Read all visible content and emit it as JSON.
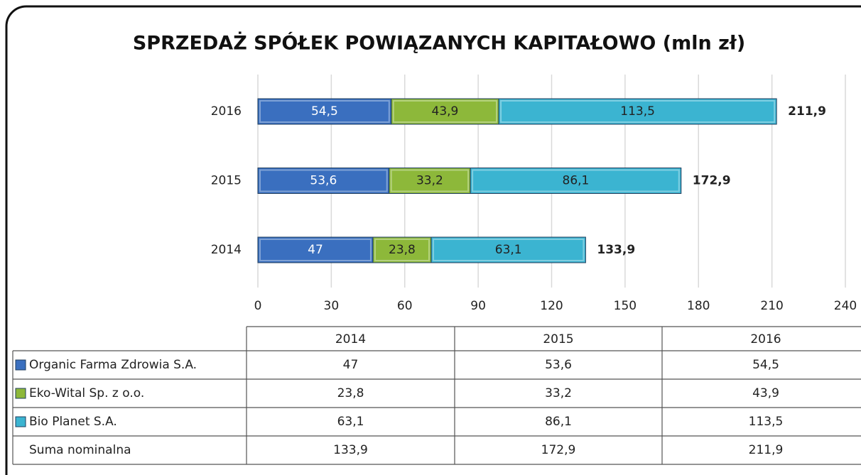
{
  "chart_data": {
    "type": "stacked-bar-horizontal",
    "title": "SPRZEDAŻ SPÓŁEK POWIĄZANYCH KAPITAŁOWO (mln zł)",
    "categories": [
      "2014",
      "2015",
      "2016"
    ],
    "series": [
      {
        "name": "Organic Farma Zdrowia S.A.",
        "color": "#3a6fbf",
        "values": [
          47,
          53.6,
          54.5
        ],
        "value_labels": [
          "47",
          "53,6",
          "54,5"
        ]
      },
      {
        "name": "Eko-Wital Sp. z o.o.",
        "color": "#8db83a",
        "values": [
          23.8,
          33.2,
          43.9
        ],
        "value_labels": [
          "23,8",
          "33,2",
          "43,9"
        ]
      },
      {
        "name": "Bio Planet S.A.",
        "color": "#3bb4d1",
        "values": [
          63.1,
          86.1,
          113.5
        ],
        "value_labels": [
          "63,1",
          "86,1",
          "113,5"
        ]
      }
    ],
    "totals": {
      "name": "Suma nominalna",
      "values": [
        133.9,
        172.9,
        211.9
      ],
      "value_labels": [
        "133,9",
        "172,9",
        "211,9"
      ]
    },
    "xlim": [
      0,
      240
    ],
    "xticks": [
      0,
      30,
      60,
      90,
      120,
      150,
      180,
      210,
      240
    ],
    "grid": true
  }
}
